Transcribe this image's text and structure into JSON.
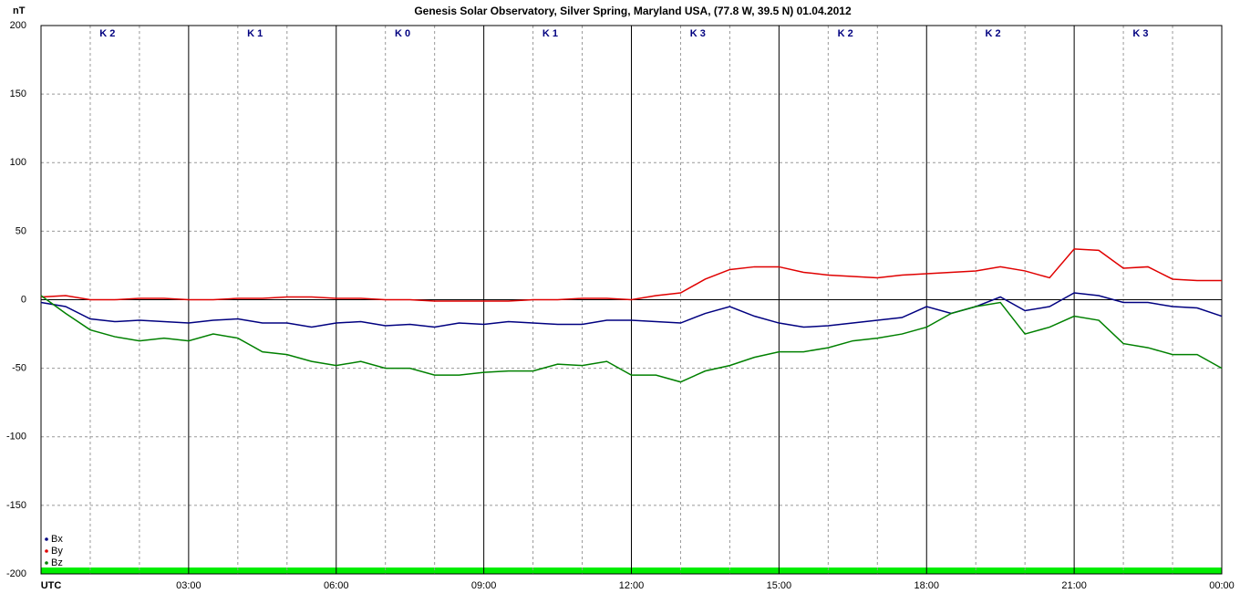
{
  "chart_data": {
    "type": "line",
    "title": "Genesis Solar Observatory, Silver Spring, Maryland USA, (77.8 W, 39.5 N)  01.04.2012",
    "y_label": "nT",
    "k_labels": [
      "K 2",
      "K 1",
      "K 0",
      "K 1",
      "K 3",
      "K 2",
      "K 2",
      "K 3"
    ],
    "x": [
      0,
      0.5,
      1,
      1.5,
      2,
      2.5,
      3,
      3.5,
      4,
      4.5,
      5,
      5.5,
      6,
      6.5,
      7,
      7.5,
      8,
      8.5,
      9,
      9.5,
      10,
      10.5,
      11,
      11.5,
      12,
      12.5,
      13,
      13.5,
      14,
      14.5,
      15,
      15.5,
      16,
      16.5,
      17,
      17.5,
      18,
      18.5,
      19,
      19.5,
      20,
      20.5,
      21,
      21.5,
      22,
      22.5,
      23,
      23.5,
      24
    ],
    "series": [
      {
        "name": "Bx",
        "color": "#000080",
        "values": [
          -2,
          -5,
          -14,
          -16,
          -15,
          -16,
          -17,
          -15,
          -14,
          -17,
          -17,
          -20,
          -17,
          -16,
          -19,
          -18,
          -20,
          -17,
          -18,
          -16,
          -17,
          -18,
          -18,
          -15,
          -15,
          -16,
          -17,
          -10,
          -5,
          -12,
          -17,
          -20,
          -19,
          -17,
          -15,
          -13,
          -5,
          -10,
          -5,
          2,
          -8,
          -5,
          5,
          3,
          -2,
          -2,
          -5,
          -6,
          -12
        ]
      },
      {
        "name": "By",
        "color": "#e00000",
        "values": [
          2,
          3,
          0,
          0,
          1,
          1,
          0,
          0,
          1,
          1,
          2,
          2,
          1,
          1,
          0,
          0,
          -1,
          -1,
          -1,
          -1,
          0,
          0,
          1,
          1,
          0,
          3,
          5,
          15,
          22,
          24,
          24,
          20,
          18,
          17,
          16,
          18,
          19,
          20,
          21,
          24,
          21,
          16,
          37,
          36,
          23,
          24,
          15,
          14,
          14
        ]
      },
      {
        "name": "Bz",
        "color": "#008000",
        "values": [
          3,
          -10,
          -22,
          -27,
          -30,
          -28,
          -30,
          -25,
          -28,
          -38,
          -40,
          -45,
          -48,
          -45,
          -50,
          -50,
          -55,
          -55,
          -53,
          -52,
          -52,
          -47,
          -48,
          -45,
          -55,
          -55,
          -60,
          -52,
          -48,
          -42,
          -38,
          -38,
          -35,
          -30,
          -28,
          -25,
          -20,
          -10,
          -5,
          -2,
          -25,
          -20,
          -12,
          -15,
          -32,
          -35,
          -40,
          -40,
          -50
        ]
      }
    ],
    "xlim": [
      0,
      24
    ],
    "xticks": [
      {
        "value": 0,
        "label": "UTC"
      },
      {
        "value": 3,
        "label": "03:00"
      },
      {
        "value": 6,
        "label": "06:00"
      },
      {
        "value": 9,
        "label": "09:00"
      },
      {
        "value": 12,
        "label": "12:00"
      },
      {
        "value": 15,
        "label": "15:00"
      },
      {
        "value": 18,
        "label": "18:00"
      },
      {
        "value": 21,
        "label": "21:00"
      },
      {
        "value": 24,
        "label": "00:00"
      }
    ],
    "x_minor_ticks": [
      1,
      2,
      4,
      5,
      7,
      8,
      10,
      11,
      13,
      14,
      16,
      17,
      19,
      20,
      22,
      23
    ],
    "ylim": [
      -200,
      200
    ],
    "yticks": [
      -200,
      -150,
      -100,
      -50,
      0,
      50,
      100,
      150,
      200
    ],
    "grid": true
  }
}
